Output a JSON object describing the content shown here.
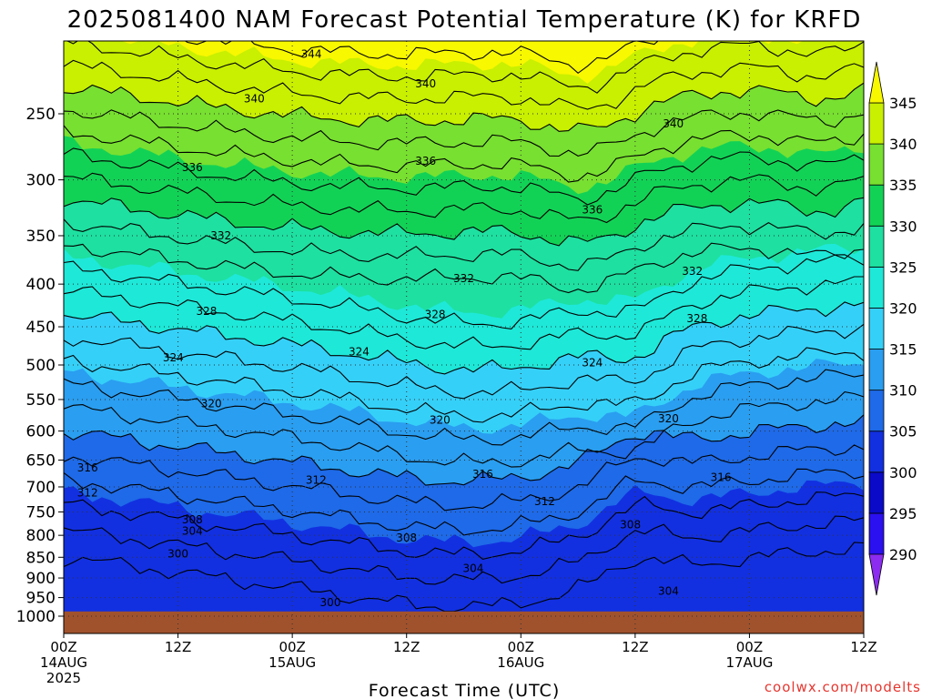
{
  "chart_data": {
    "type": "heatmap",
    "title": "2025081400 NAM Forecast Potential Temperature (K) for KRFD",
    "xlabel": "Forecast Time (UTC)",
    "ylabel": "",
    "credit": "coolwx.com/modelts",
    "x_ticks": [
      {
        "hour": 0,
        "lines": [
          "00Z",
          "14AUG",
          "2025"
        ]
      },
      {
        "hour": 12,
        "lines": [
          "12Z"
        ]
      },
      {
        "hour": 24,
        "lines": [
          "00Z",
          "15AUG"
        ]
      },
      {
        "hour": 36,
        "lines": [
          "12Z"
        ]
      },
      {
        "hour": 48,
        "lines": [
          "00Z",
          "16AUG"
        ]
      },
      {
        "hour": 60,
        "lines": [
          "12Z"
        ]
      },
      {
        "hour": 72,
        "lines": [
          "00Z",
          "17AUG"
        ]
      },
      {
        "hour": 84,
        "lines": [
          "12Z"
        ]
      }
    ],
    "xlim": [
      0,
      84
    ],
    "y_ticks": [
      250,
      300,
      350,
      400,
      450,
      500,
      550,
      600,
      650,
      700,
      750,
      800,
      850,
      900,
      950,
      1000
    ],
    "ylim_hpa": [
      200,
      1000
    ],
    "y_scale": "log-pressure (inverted)",
    "surface_pressure_hpa": 987,
    "grid": true,
    "colorbar": {
      "ticks": [
        290,
        295,
        300,
        305,
        310,
        315,
        320,
        325,
        330,
        335,
        340,
        345
      ],
      "colors": [
        "#8b2cf0",
        "#2b10f0",
        "#0a0ac8",
        "#1230e0",
        "#1e6ae8",
        "#2a9ef0",
        "#35d0f8",
        "#1ee8d8",
        "#1ee0a0",
        "#12d256",
        "#78e030",
        "#c8f000",
        "#f8f800"
      ],
      "extend": "both"
    },
    "contour_interval": 2,
    "contour_labels": [
      {
        "value": "344",
        "hour": 26,
        "p": 212
      },
      {
        "value": "340",
        "hour": 20,
        "p": 240
      },
      {
        "value": "340",
        "hour": 38,
        "p": 230
      },
      {
        "value": "340",
        "hour": 64,
        "p": 257
      },
      {
        "value": "336",
        "hour": 13.5,
        "p": 290
      },
      {
        "value": "336",
        "hour": 38,
        "p": 285
      },
      {
        "value": "336",
        "hour": 55.5,
        "p": 326
      },
      {
        "value": "332",
        "hour": 16.5,
        "p": 350
      },
      {
        "value": "332",
        "hour": 42,
        "p": 394
      },
      {
        "value": "332",
        "hour": 66,
        "p": 386
      },
      {
        "value": "328",
        "hour": 15,
        "p": 431
      },
      {
        "value": "328",
        "hour": 39,
        "p": 435
      },
      {
        "value": "328",
        "hour": 66.5,
        "p": 440
      },
      {
        "value": "324",
        "hour": 11.5,
        "p": 490
      },
      {
        "value": "324",
        "hour": 31,
        "p": 482
      },
      {
        "value": "324",
        "hour": 55.5,
        "p": 497
      },
      {
        "value": "320",
        "hour": 15.5,
        "p": 556
      },
      {
        "value": "320",
        "hour": 39.5,
        "p": 582
      },
      {
        "value": "320",
        "hour": 63.5,
        "p": 580
      },
      {
        "value": "316",
        "hour": 2.5,
        "p": 664
      },
      {
        "value": "316",
        "hour": 44,
        "p": 676
      },
      {
        "value": "316",
        "hour": 69,
        "p": 682
      },
      {
        "value": "312",
        "hour": 2.5,
        "p": 712
      },
      {
        "value": "312",
        "hour": 26.5,
        "p": 687
      },
      {
        "value": "312",
        "hour": 50.5,
        "p": 729
      },
      {
        "value": "308",
        "hour": 13.5,
        "p": 766
      },
      {
        "value": "308",
        "hour": 36,
        "p": 806
      },
      {
        "value": "308",
        "hour": 59.5,
        "p": 777
      },
      {
        "value": "304",
        "hour": 13.5,
        "p": 791
      },
      {
        "value": "304",
        "hour": 43,
        "p": 877
      },
      {
        "value": "304",
        "hour": 63.5,
        "p": 933
      },
      {
        "value": "300",
        "hour": 12,
        "p": 842
      },
      {
        "value": "300",
        "hour": 28,
        "p": 963
      }
    ]
  }
}
